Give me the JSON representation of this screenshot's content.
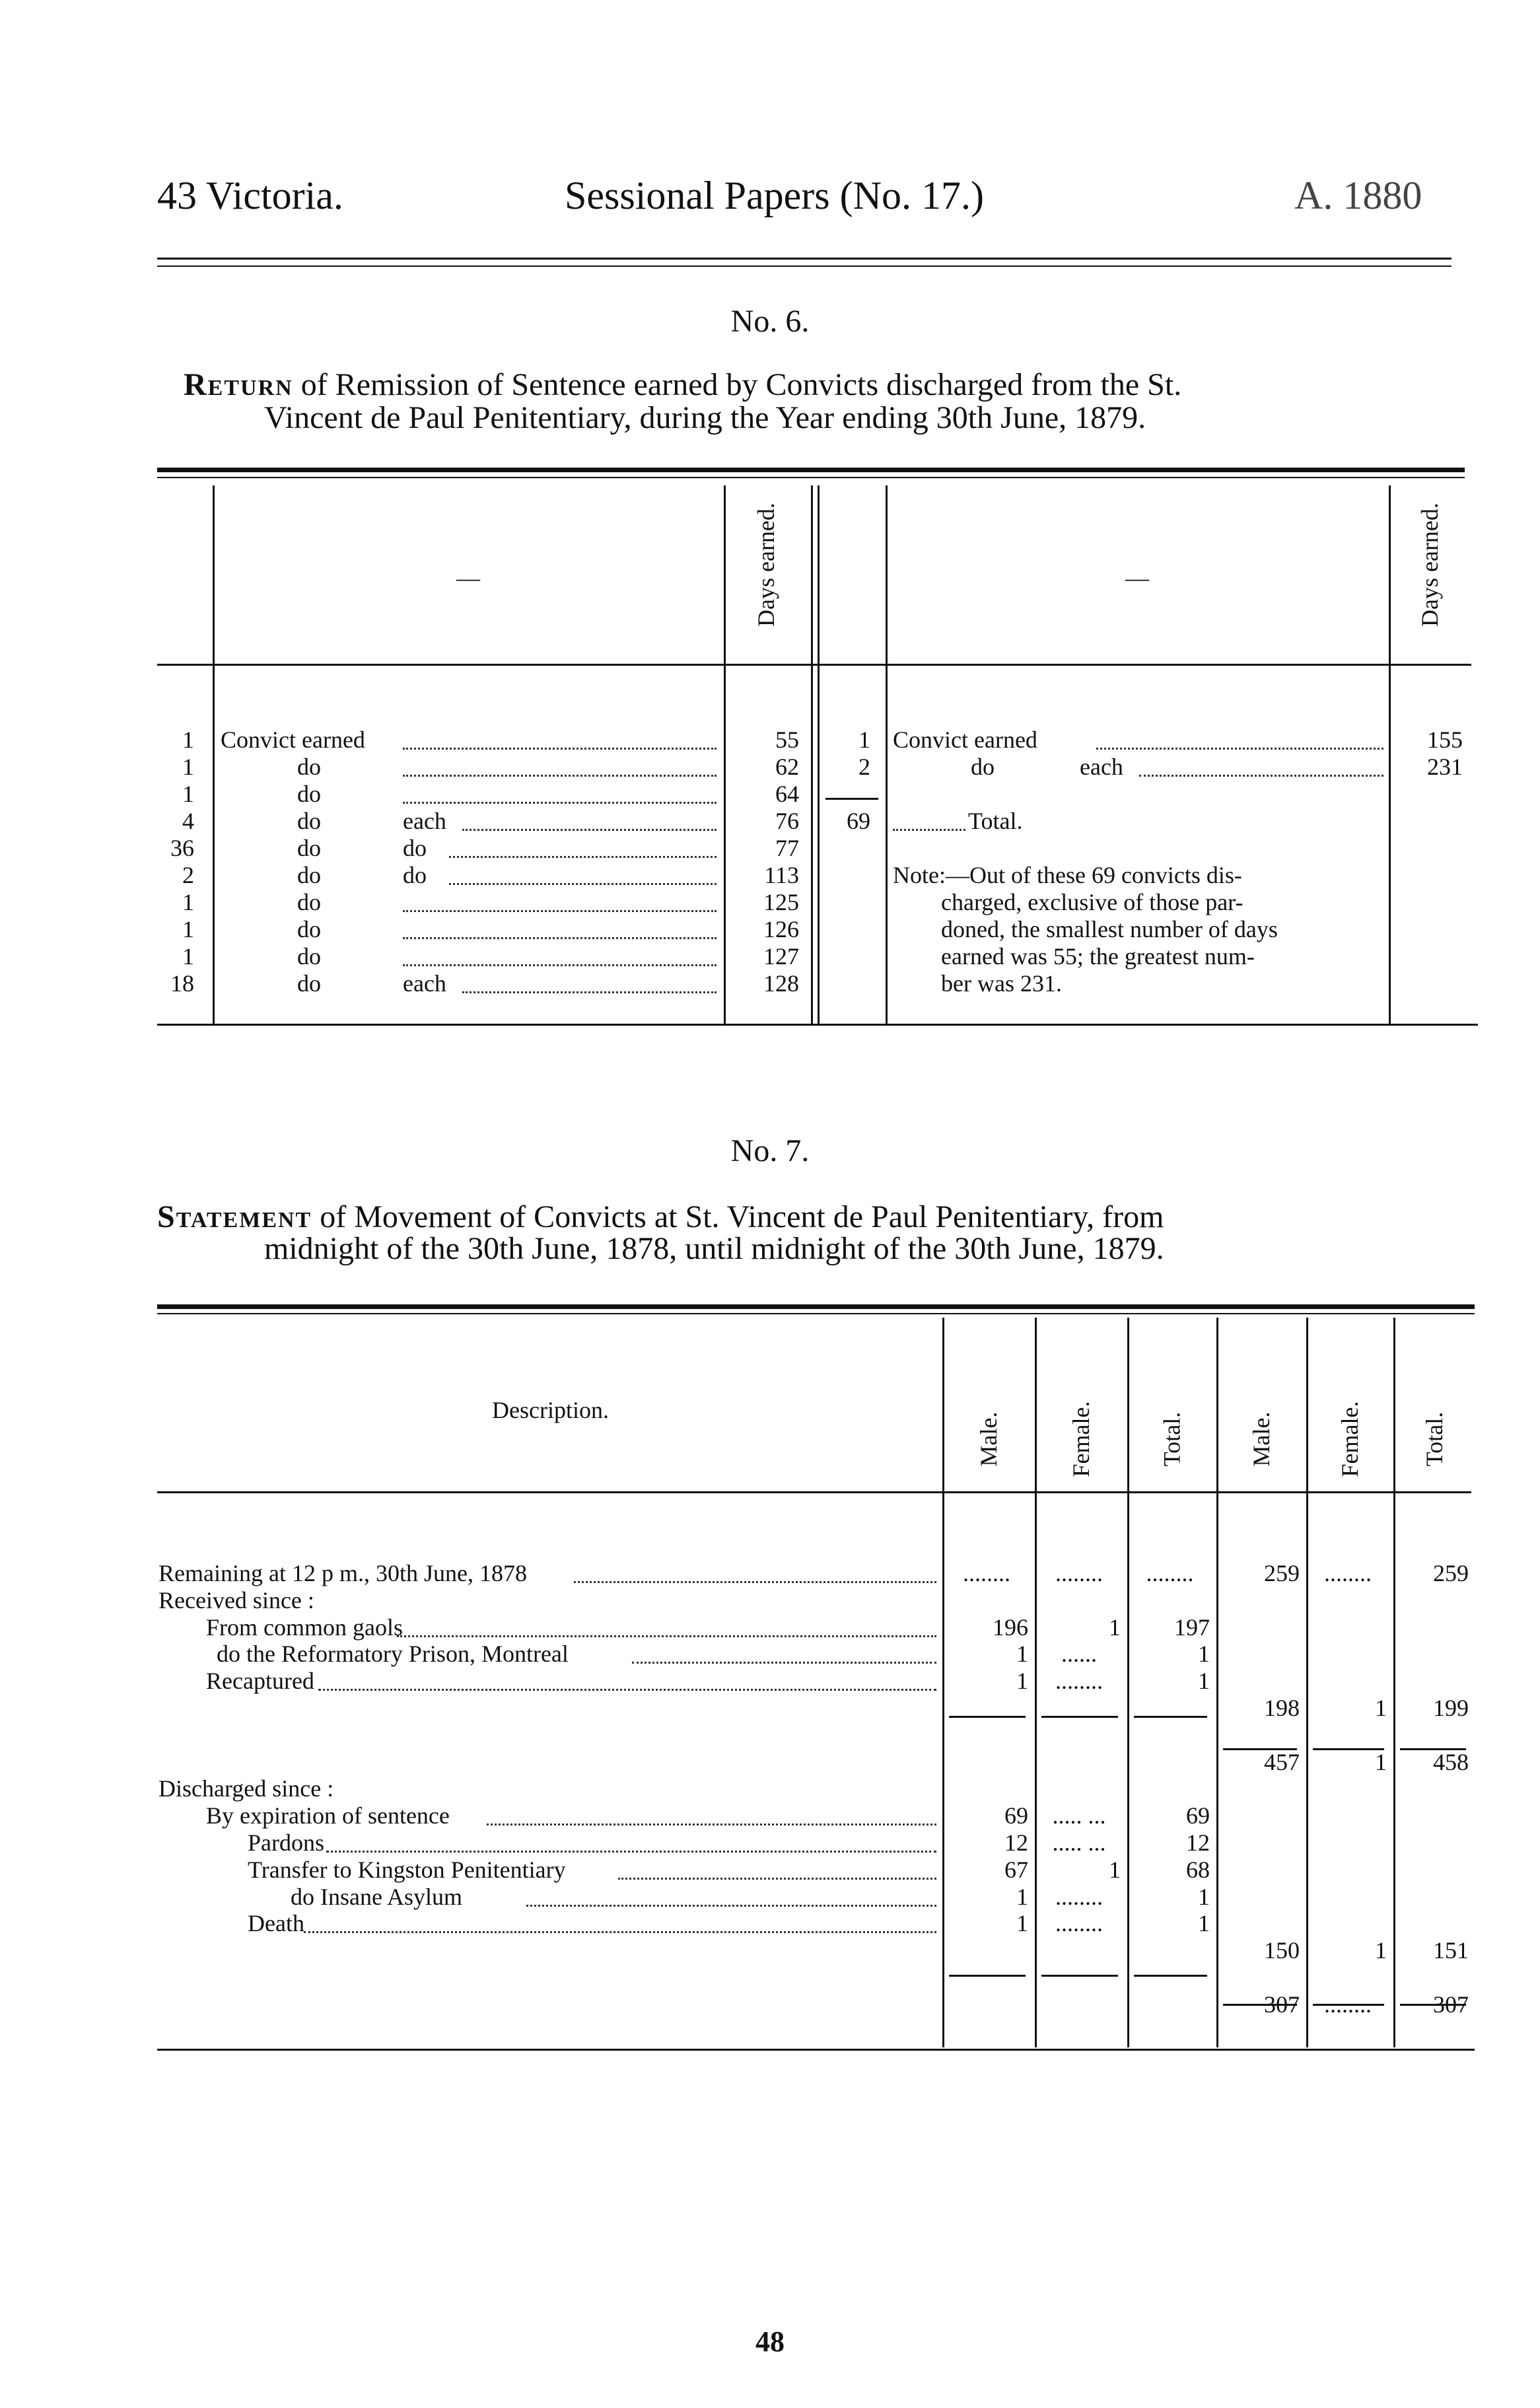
{
  "header": {
    "left": "43 Victoria.",
    "center": "Sessional Papers (No. 17.)",
    "right": "A. 1880"
  },
  "table6": {
    "number": "No. 6.",
    "title_lead": "Return",
    "title_rest": "of Remission of Sentence earned by Convicts discharged from the St.",
    "title_line2": "Vincent de Paul Penitentiary, during the Year ending 30th June, 1879.",
    "col_dash": "—",
    "col_days": "Days earned.",
    "left_rows": [
      {
        "count": "1",
        "label": "Convict earned",
        "suffix": "",
        "days": "55"
      },
      {
        "count": "1",
        "label": "do",
        "suffix": "",
        "days": "62"
      },
      {
        "count": "1",
        "label": "do",
        "suffix": "",
        "days": "64"
      },
      {
        "count": "4",
        "label": "do",
        "suffix": "each",
        "days": "76"
      },
      {
        "count": "36",
        "label": "do",
        "suffix": "do",
        "days": "77"
      },
      {
        "count": "2",
        "label": "do",
        "suffix": "do",
        "days": "113"
      },
      {
        "count": "1",
        "label": "do",
        "suffix": "",
        "days": "125"
      },
      {
        "count": "1",
        "label": "do",
        "suffix": "",
        "days": "126"
      },
      {
        "count": "1",
        "label": "do",
        "suffix": "",
        "days": "127"
      },
      {
        "count": "18",
        "label": "do",
        "suffix": "each",
        "days": "128"
      }
    ],
    "right_rows": [
      {
        "count": "1",
        "label": "Convict earned",
        "suffix": "",
        "days": "155"
      },
      {
        "count": "2",
        "label": "do",
        "suffix": "each",
        "days": "231"
      }
    ],
    "total": {
      "count": "69",
      "label": "Total."
    },
    "note": [
      "Note:—Out of these 69 convicts dis-",
      "charged, exclusive of those par-",
      "doned, the smallest number of days",
      "earned was 55; the greatest num-",
      "ber was 231."
    ]
  },
  "table7": {
    "number": "No. 7.",
    "title_lead": "Statement",
    "title_rest": "of Movement of Convicts at St. Vincent de Paul Penitentiary, from",
    "title_line2": "midnight of the 30th June, 1878, until midnight of the 30th June, 1879.",
    "col_description": "Description.",
    "cols": [
      "Male.",
      "Female.",
      "Total.",
      "Male.",
      "Female.",
      "Total."
    ],
    "rows": [
      {
        "slot": 0,
        "indent": 0,
        "label": "Remaining at 12 p m., 30th June, 1878",
        "lead": true,
        "v": [
          "........",
          "........",
          "........",
          "259",
          "........",
          "259"
        ]
      },
      {
        "slot": 1,
        "indent": 0,
        "label": "Received since :",
        "lead": false,
        "v": [
          "",
          "",
          "",
          "",
          "",
          ""
        ]
      },
      {
        "slot": 2,
        "indent": 1,
        "label": "From common gaols",
        "lead": true,
        "v": [
          "196",
          "1",
          "197",
          "",
          "",
          ""
        ]
      },
      {
        "slot": 3,
        "indent": 2,
        "label": "do   the Reformatory Prison, Montreal",
        "lead": true,
        "v": [
          "1",
          "......",
          "1",
          "",
          "",
          ""
        ]
      },
      {
        "slot": 4,
        "indent": 1,
        "label": "Recaptured",
        "lead": true,
        "v": [
          "1",
          "........",
          "1",
          "",
          "",
          ""
        ]
      },
      {
        "slot": 5,
        "indent": 0,
        "label": "",
        "lead": false,
        "v": [
          "",
          "",
          "",
          "198",
          "1",
          "199"
        ]
      },
      {
        "slot": 7,
        "indent": 0,
        "label": "",
        "lead": false,
        "v": [
          "",
          "",
          "",
          "457",
          "1",
          "458"
        ]
      },
      {
        "slot": 8,
        "indent": 0,
        "label": "Discharged since :",
        "lead": false,
        "v": [
          "",
          "",
          "",
          "",
          "",
          ""
        ]
      },
      {
        "slot": 9,
        "indent": 1,
        "label": "By expiration of sentence",
        "lead": true,
        "v": [
          "69",
          "..... ...",
          "69",
          "",
          "",
          ""
        ]
      },
      {
        "slot": 10,
        "indent": 3,
        "label": "Pardons",
        "lead": true,
        "v": [
          "12",
          "..... ...",
          "12",
          "",
          "",
          ""
        ]
      },
      {
        "slot": 11,
        "indent": 3,
        "label": "Transfer to Kingston Penitentiary",
        "lead": true,
        "v": [
          "67",
          "1",
          "68",
          "",
          "",
          ""
        ]
      },
      {
        "slot": 12,
        "indent": 4,
        "label": "do      Insane Asylum",
        "lead": true,
        "v": [
          "1",
          "........",
          "1",
          "",
          "",
          ""
        ]
      },
      {
        "slot": 13,
        "indent": 3,
        "label": "Death",
        "lead": true,
        "v": [
          "1",
          "........",
          "1",
          "",
          "",
          ""
        ]
      },
      {
        "slot": 14,
        "indent": 0,
        "label": "",
        "lead": false,
        "v": [
          "",
          "",
          "",
          "150",
          "1",
          "151"
        ]
      },
      {
        "slot": 16,
        "indent": 0,
        "label": "",
        "lead": false,
        "v": [
          "",
          "",
          "",
          "307",
          "........",
          "307"
        ]
      }
    ]
  },
  "footer": {
    "page_number": "48"
  }
}
